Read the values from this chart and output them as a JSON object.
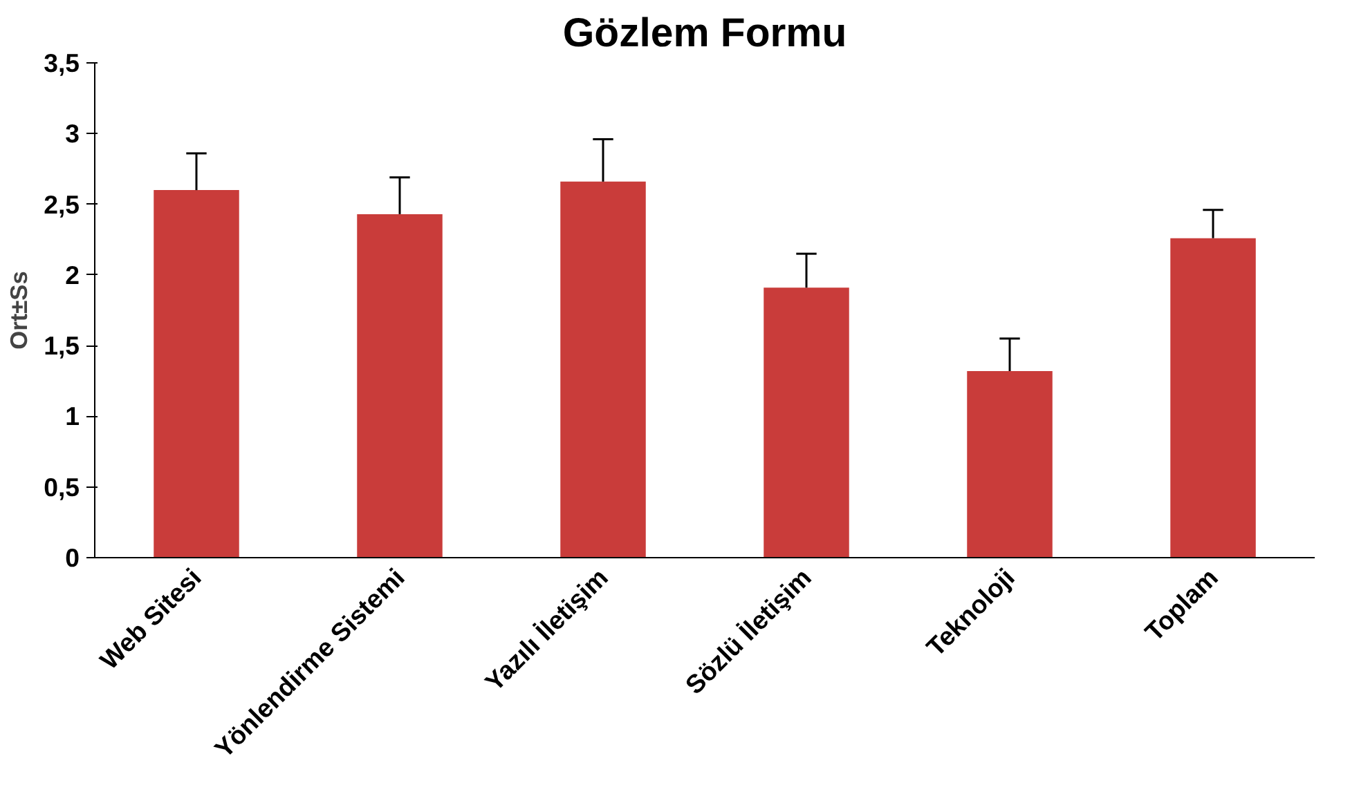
{
  "chart_data": {
    "type": "bar",
    "title": "Gözlem Formu",
    "ylabel": "Ort±Ss",
    "categories": [
      "Web Sitesi",
      "Yönlendirme Sistemi",
      "Yazılı İletişim",
      "Sözlü İletişim",
      "Teknoloji",
      "Toplam"
    ],
    "values": [
      2.6,
      2.43,
      2.66,
      1.91,
      1.32,
      2.26
    ],
    "errors": [
      [
        2.6,
        2.86
      ],
      [
        2.43,
        2.69
      ],
      [
        2.66,
        2.96
      ],
      [
        1.91,
        2.15
      ],
      [
        1.32,
        1.55
      ],
      [
        2.26,
        2.46
      ]
    ],
    "color": "#c93c3a",
    "ylim": [
      0,
      3.5
    ],
    "yticks": [
      0,
      {
        "value": 0.5,
        "label": "0,5"
      },
      1,
      {
        "value": 1.5,
        "label": "1,5"
      },
      2,
      {
        "value": 2.5,
        "label": "2,5"
      },
      3,
      {
        "value": 3.5,
        "label": "3,5"
      }
    ],
    "grid": false
  }
}
